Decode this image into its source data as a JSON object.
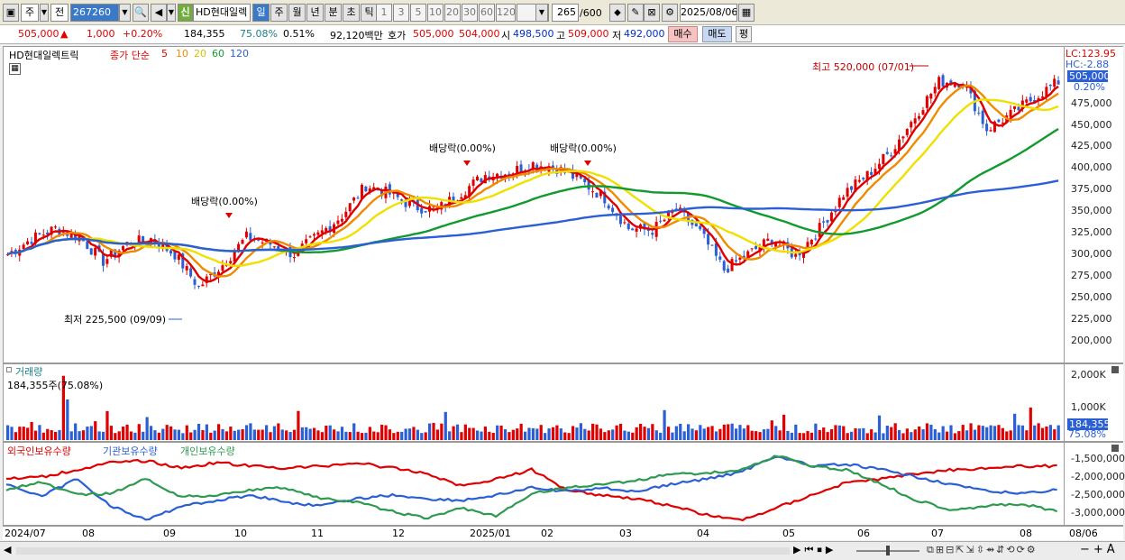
{
  "toolbar": {
    "period_type": "주",
    "prev_label": "전",
    "stock_code": "267260",
    "market_badge": "신",
    "stock_name": "HD현대일렉",
    "periods": [
      "일",
      "주",
      "월",
      "년",
      "분",
      "초",
      "틱"
    ],
    "interval_buttons": [
      "1",
      "3",
      "5",
      "10",
      "20",
      "30",
      "60",
      "120"
    ],
    "count_value": "265",
    "count_total": "/600",
    "date_value": "2025/08/06"
  },
  "quote": {
    "price": "505,000",
    "change_arrow": "▲",
    "change": "1,000",
    "change_rate": "+0.20%",
    "volume": "184,355",
    "volume_ratio": "75.08%",
    "turnover_rate": "0.51%",
    "trade_value": "92,120백만",
    "bid_label": "호가",
    "ask_price": "505,000",
    "bid_price": "504,000",
    "open_label": "시",
    "open_price": "498,500",
    "high_label": "고",
    "high_price": "509,000",
    "low_label": "저",
    "low_price": "492,000",
    "buy_button": "매수",
    "sell_button": "매도",
    "eval_button": "평"
  },
  "price_panel": {
    "stock_label": "HD현대일렉트릭",
    "ma_title": "종가 단순",
    "ma_periods": [
      "5",
      "10",
      "20",
      "60",
      "120"
    ],
    "ma_colors": [
      "#e00000",
      "#f08a00",
      "#f0e000",
      "#119a2e",
      "#2a5fd6"
    ],
    "lc_label": "LC:123.95",
    "hc_label": "HC:-2.88",
    "current_price_tag": "505,000",
    "current_rate_tag": "0.20%",
    "y_ticks": [
      "475,000",
      "450,000",
      "425,000",
      "400,000",
      "375,000",
      "350,000",
      "325,000",
      "300,000",
      "275,000",
      "250,000",
      "225,000",
      "200,000"
    ],
    "high_note": "최고 520,000 (07/01)",
    "low_note": "최저 225,500 (09/09)",
    "dividend_note": "배당락(0.00%)"
  },
  "volume_panel": {
    "title": "거래량",
    "value_label": "184,355주(75.08%)",
    "y_ticks": [
      "2,000K",
      "1,000K"
    ],
    "current_tag": "184,355",
    "current_rate": "75.08%"
  },
  "holdings_panel": {
    "series_labels": [
      "외국인보유수량",
      "기관보유수량",
      "개인보유수량"
    ],
    "series_colors": [
      "#e00000",
      "#2a5fd6",
      "#2e9a50"
    ],
    "y_ticks": [
      "-1,500,000",
      "-2,000,000",
      "-2,500,000",
      "-3,000,000"
    ]
  },
  "x_axis": {
    "labels": [
      "2024/07",
      "08",
      "09",
      "10",
      "11",
      "12",
      "2025/01",
      "02",
      "03",
      "04",
      "05",
      "06",
      "07",
      "08"
    ],
    "right_label": "08/06"
  },
  "chart_data": {
    "type": "candlestick",
    "ylim": [
      185000,
      530000
    ],
    "high": {
      "value": 520000,
      "date": "07/01"
    },
    "low": {
      "value": 225500,
      "date": "09/09"
    },
    "last_close": 505000,
    "close_approx": [
      300000,
      318000,
      330000,
      320000,
      292000,
      312000,
      318000,
      300000,
      262000,
      288000,
      320000,
      312000,
      300000,
      322000,
      345000,
      380000,
      370000,
      355000,
      352000,
      372000,
      392000,
      395000,
      405000,
      400000,
      385000,
      365000,
      330000,
      328000,
      352000,
      325000,
      282000,
      300000,
      318000,
      298000,
      330000,
      370000,
      392000,
      420000,
      460000,
      500000,
      500000,
      445000,
      462000,
      482000,
      500000
    ],
    "ma_labels": [
      "5",
      "10",
      "20",
      "60",
      "120"
    ]
  }
}
